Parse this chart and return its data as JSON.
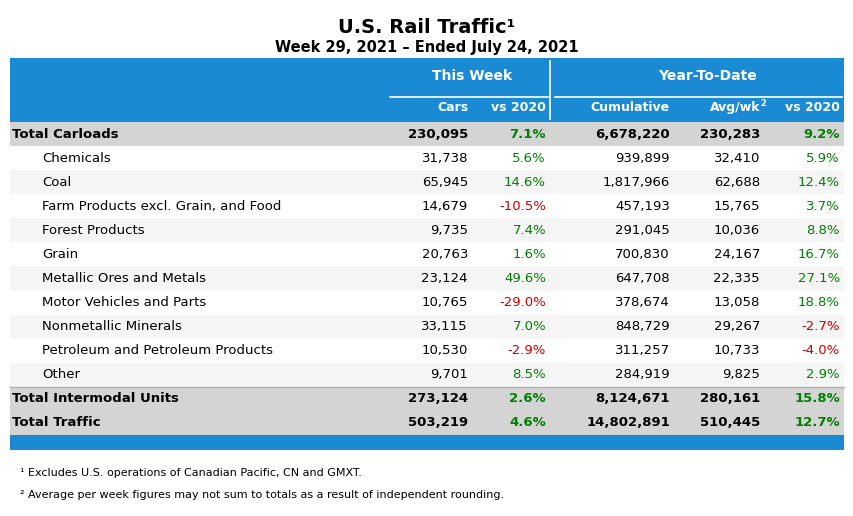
{
  "title": "U.S. Rail Traffic¹",
  "subtitle": "Week 29, 2021 – Ended July 24, 2021",
  "rows": [
    {
      "label": "Total Carloads",
      "cars": "230,095",
      "vs2020_week": "7.1%",
      "cumulative": "6,678,220",
      "avgwk": "230,283",
      "vs2020_ytd": "9.2%",
      "bold": true,
      "section_break_before": false
    },
    {
      "label": "Chemicals",
      "cars": "31,738",
      "vs2020_week": "5.6%",
      "cumulative": "939,899",
      "avgwk": "32,410",
      "vs2020_ytd": "5.9%",
      "bold": false,
      "section_break_before": false
    },
    {
      "label": "Coal",
      "cars": "65,945",
      "vs2020_week": "14.6%",
      "cumulative": "1,817,966",
      "avgwk": "62,688",
      "vs2020_ytd": "12.4%",
      "bold": false,
      "section_break_before": false
    },
    {
      "label": "Farm Products excl. Grain, and Food",
      "cars": "14,679",
      "vs2020_week": "-10.5%",
      "cumulative": "457,193",
      "avgwk": "15,765",
      "vs2020_ytd": "3.7%",
      "bold": false,
      "section_break_before": false
    },
    {
      "label": "Forest Products",
      "cars": "9,735",
      "vs2020_week": "7.4%",
      "cumulative": "291,045",
      "avgwk": "10,036",
      "vs2020_ytd": "8.8%",
      "bold": false,
      "section_break_before": false
    },
    {
      "label": "Grain",
      "cars": "20,763",
      "vs2020_week": "1.6%",
      "cumulative": "700,830",
      "avgwk": "24,167",
      "vs2020_ytd": "16.7%",
      "bold": false,
      "section_break_before": false
    },
    {
      "label": "Metallic Ores and Metals",
      "cars": "23,124",
      "vs2020_week": "49.6%",
      "cumulative": "647,708",
      "avgwk": "22,335",
      "vs2020_ytd": "27.1%",
      "bold": false,
      "section_break_before": false
    },
    {
      "label": "Motor Vehicles and Parts",
      "cars": "10,765",
      "vs2020_week": "-29.0%",
      "cumulative": "378,674",
      "avgwk": "13,058",
      "vs2020_ytd": "18.8%",
      "bold": false,
      "section_break_before": false
    },
    {
      "label": "Nonmetallic Minerals",
      "cars": "33,115",
      "vs2020_week": "7.0%",
      "cumulative": "848,729",
      "avgwk": "29,267",
      "vs2020_ytd": "-2.7%",
      "bold": false,
      "section_break_before": false
    },
    {
      "label": "Petroleum and Petroleum Products",
      "cars": "10,530",
      "vs2020_week": "-2.9%",
      "cumulative": "311,257",
      "avgwk": "10,733",
      "vs2020_ytd": "-4.0%",
      "bold": false,
      "section_break_before": false
    },
    {
      "label": "Other",
      "cars": "9,701",
      "vs2020_week": "8.5%",
      "cumulative": "284,919",
      "avgwk": "9,825",
      "vs2020_ytd": "2.9%",
      "bold": false,
      "section_break_before": false
    },
    {
      "label": "Total Intermodal Units",
      "cars": "273,124",
      "vs2020_week": "2.6%",
      "cumulative": "8,124,671",
      "avgwk": "280,161",
      "vs2020_ytd": "15.8%",
      "bold": true,
      "section_break_before": true
    },
    {
      "label": "Total Traffic",
      "cars": "503,219",
      "vs2020_week": "4.6%",
      "cumulative": "14,802,891",
      "avgwk": "510,445",
      "vs2020_ytd": "12.7%",
      "bold": true,
      "section_break_before": false
    }
  ],
  "footnotes": [
    "¹ Excludes U.S. operations of Canadian Pacific, CN and GMXT.",
    "² Average per week figures may not sum to totals as a result of independent rounding."
  ],
  "colors": {
    "header_bg": "#1a8ad4",
    "header_text": "#FFFFFF",
    "title_text": "#000000",
    "row_bg_alt": "#e8e8e8",
    "row_bg_white": "#f5f5f5",
    "row_bg_bold": "#d4d4d4",
    "green": "#008000",
    "red": "#CC0000",
    "black": "#000000",
    "white": "#FFFFFF",
    "divider": "#b0b0b0"
  }
}
